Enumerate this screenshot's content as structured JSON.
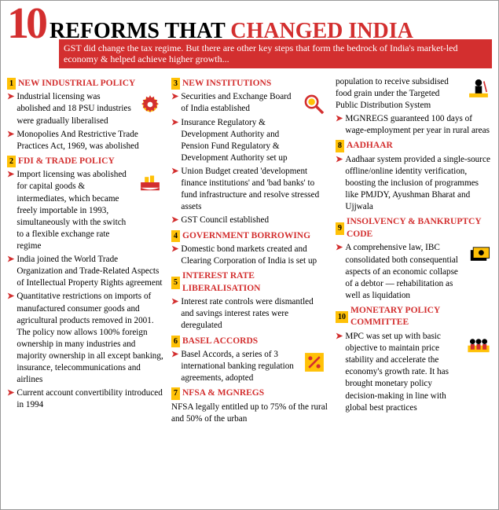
{
  "colors": {
    "red": "#d32f2f",
    "black": "#000000",
    "yellow": "#ffc107",
    "subtitle_bg": "#d32f2f",
    "subtitle_text": "#ffffff"
  },
  "headline": {
    "number": "10",
    "text_black": "REFORMS THAT ",
    "text_red": "CHANGED INDIA"
  },
  "subtitle": "GST did change the tax regime. But there are other key steps that form the bedrock of India's market-led economy & helped achieve higher growth...",
  "sections": [
    {
      "num": "1",
      "title": "NEW INDUSTRIAL POLICY",
      "icon": "gear",
      "bullets": [
        "Industrial licensing was abolished and 18 PSU industries were gradually liberalised",
        "Monopolies And Restrictive Trade Practices Act, 1969, was abolished"
      ]
    },
    {
      "num": "2",
      "title": "FDI & TRADE POLICY",
      "icon": "ship",
      "bullets": [
        "Import licensing was abolished for capital goods & intermediates, which became freely importable in 1993, simultaneously with the switch to a flexible exchange rate regime",
        "India joined the World Trade Organization and Trade-Related Aspects of Intellectual Property Rights agreement",
        "Quantitative restrictions on imports of manufactured consumer goods and agricultural products removed in 2001. The policy now allows 100% foreign ownership in many industries and majority ownership in all except banking, insurance, telecommunications and airlines",
        "Current account convertibility introduced in 1994"
      ]
    },
    {
      "num": "3",
      "title": "NEW INSTITUTIONS",
      "icon": "magnifier",
      "bullets": [
        "Securities and Exchange Board of India established",
        "Insurance Regulatory & Development Authority and Pension Fund Regulatory & Development Authority set up",
        "Union Budget created 'development finance institutions' and 'bad banks' to fund infrastructure and resolve stressed assets",
        "GST Council established"
      ]
    },
    {
      "num": "4",
      "title": "GOVERNMENT BORROWING",
      "bullets": [
        "Domestic bond markets created and Clearing Corporation of India is set up"
      ]
    },
    {
      "num": "5",
      "title": "INTEREST RATE LIBERALISATION",
      "bullets": [
        "Interest rate controls were dismantled and savings interest rates were deregulated"
      ]
    },
    {
      "num": "6",
      "title": "BASEL ACCORDS",
      "icon": "percent",
      "bullets": [
        "Basel Accords, a series of 3 international banking regulation agreements, adopted"
      ]
    },
    {
      "num": "7",
      "title": "NFSA & MGNREGS",
      "bullets_plain": [
        "NFSA legally entitled up to 75% of the rural and 50% of the urban"
      ]
    },
    {
      "continuation": true,
      "bullets_plain": [
        "population to receive subsidised food grain under the Targeted Public Distribution System"
      ],
      "bullets": [
        "MGNREGS guaranteed 100 days of wage-employment per year in rural areas"
      ],
      "icon": "worker"
    },
    {
      "num": "8",
      "title": "AADHAAR",
      "bullets": [
        "Aadhaar system provided a single-source offline/online identity verification, boosting the inclusion of programmes like PMJDY, Ayushman Bharat and Ujjwala"
      ]
    },
    {
      "num": "9",
      "title": "INSOLVENCY & BANKRUPTCY CODE",
      "icon": "money",
      "bullets": [
        "A comprehensive law, IBC consolidated both consequential aspects of an economic collapse of a debtor — rehabilitation as well as liquidation"
      ]
    },
    {
      "num": "10",
      "title": "MONETARY POLICY COMMITTEE",
      "icon": "panel",
      "bullets": [
        "MPC was set up with basic objective to maintain price stability and accelerate the economy's growth rate. It has brought monetary policy decision-making in line with global best practices"
      ]
    }
  ],
  "layout": {
    "col1": [
      0,
      1
    ],
    "col2": [
      2,
      3,
      4,
      5,
      6
    ],
    "col3": [
      7,
      8,
      9,
      10
    ]
  }
}
